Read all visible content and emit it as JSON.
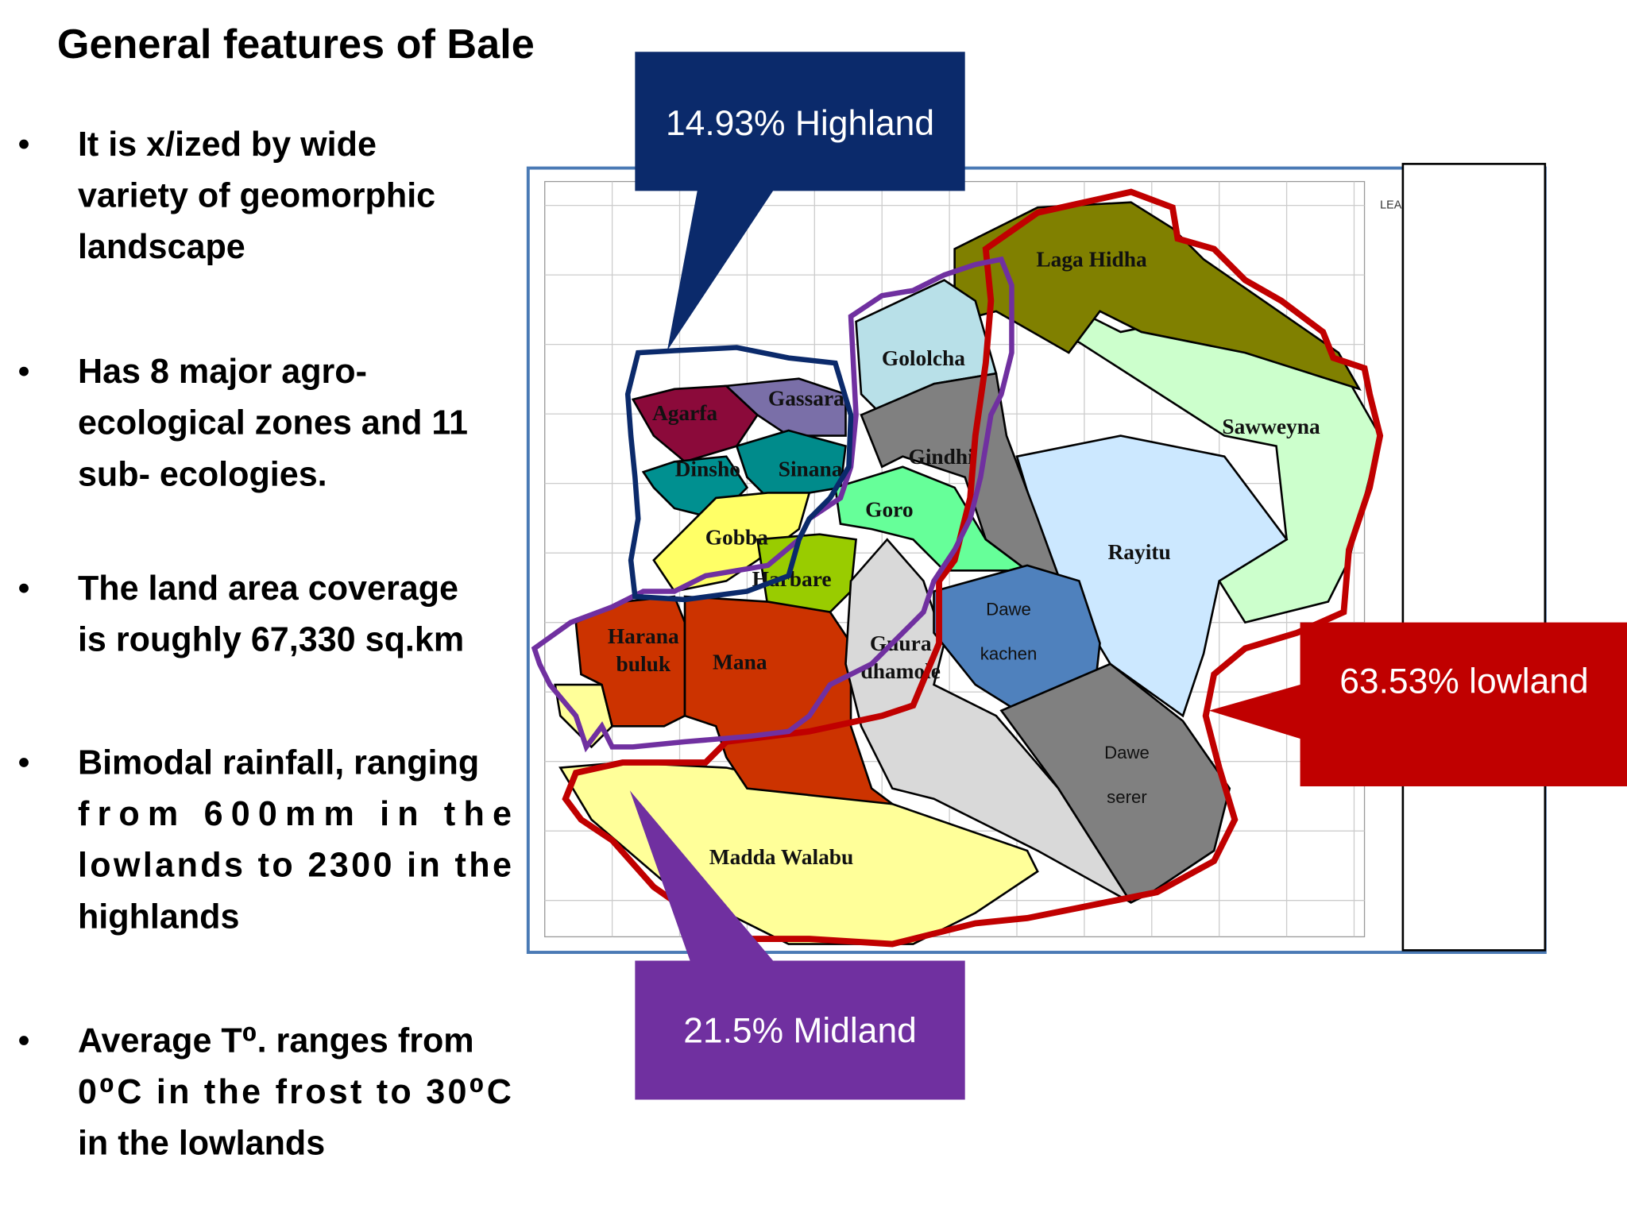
{
  "title": "General features of Bale",
  "bullets": [
    [
      "It is x/ized by wide",
      "variety of geomorphic",
      "landscape"
    ],
    [
      "Has 8 major agro-",
      "ecological zones and 11",
      "sub- ecologies."
    ],
    [
      "The land area coverage",
      "is roughly 67,330 sq.km"
    ],
    [
      "Bimodal rainfall, ranging",
      "from 600mm in the",
      "lowlands to 2300 in the",
      "highlands"
    ],
    [
      " Average T⁰. ranges from",
      "0⁰C in the frost to 30⁰C",
      "in the lowlands"
    ]
  ],
  "callouts": {
    "highland": "14.93% Highland",
    "lowland": "63.53% lowland",
    "midland": "21.5% Midland"
  },
  "map": {
    "legend": "LEA",
    "regions": [
      [
        "Madda Walabu"
      ],
      [
        "Sawweyna"
      ],
      [
        "Rayitu"
      ],
      [
        "Laga Hidha"
      ],
      [
        "Gololcha"
      ],
      [
        "Gindhi"
      ],
      [
        "Agarfa"
      ],
      [
        "Gassara"
      ],
      [
        "Dinsho"
      ],
      [
        "Sinana"
      ],
      [
        "Goro"
      ],
      [
        "Gobba"
      ],
      [
        "Harbare"
      ],
      [
        "Harana",
        "buluk"
      ],
      [
        "Mana"
      ],
      [
        "Guura",
        "dhamole"
      ],
      [
        "Dawe",
        "kachen"
      ],
      [
        "Dawe",
        "serer"
      ]
    ]
  }
}
